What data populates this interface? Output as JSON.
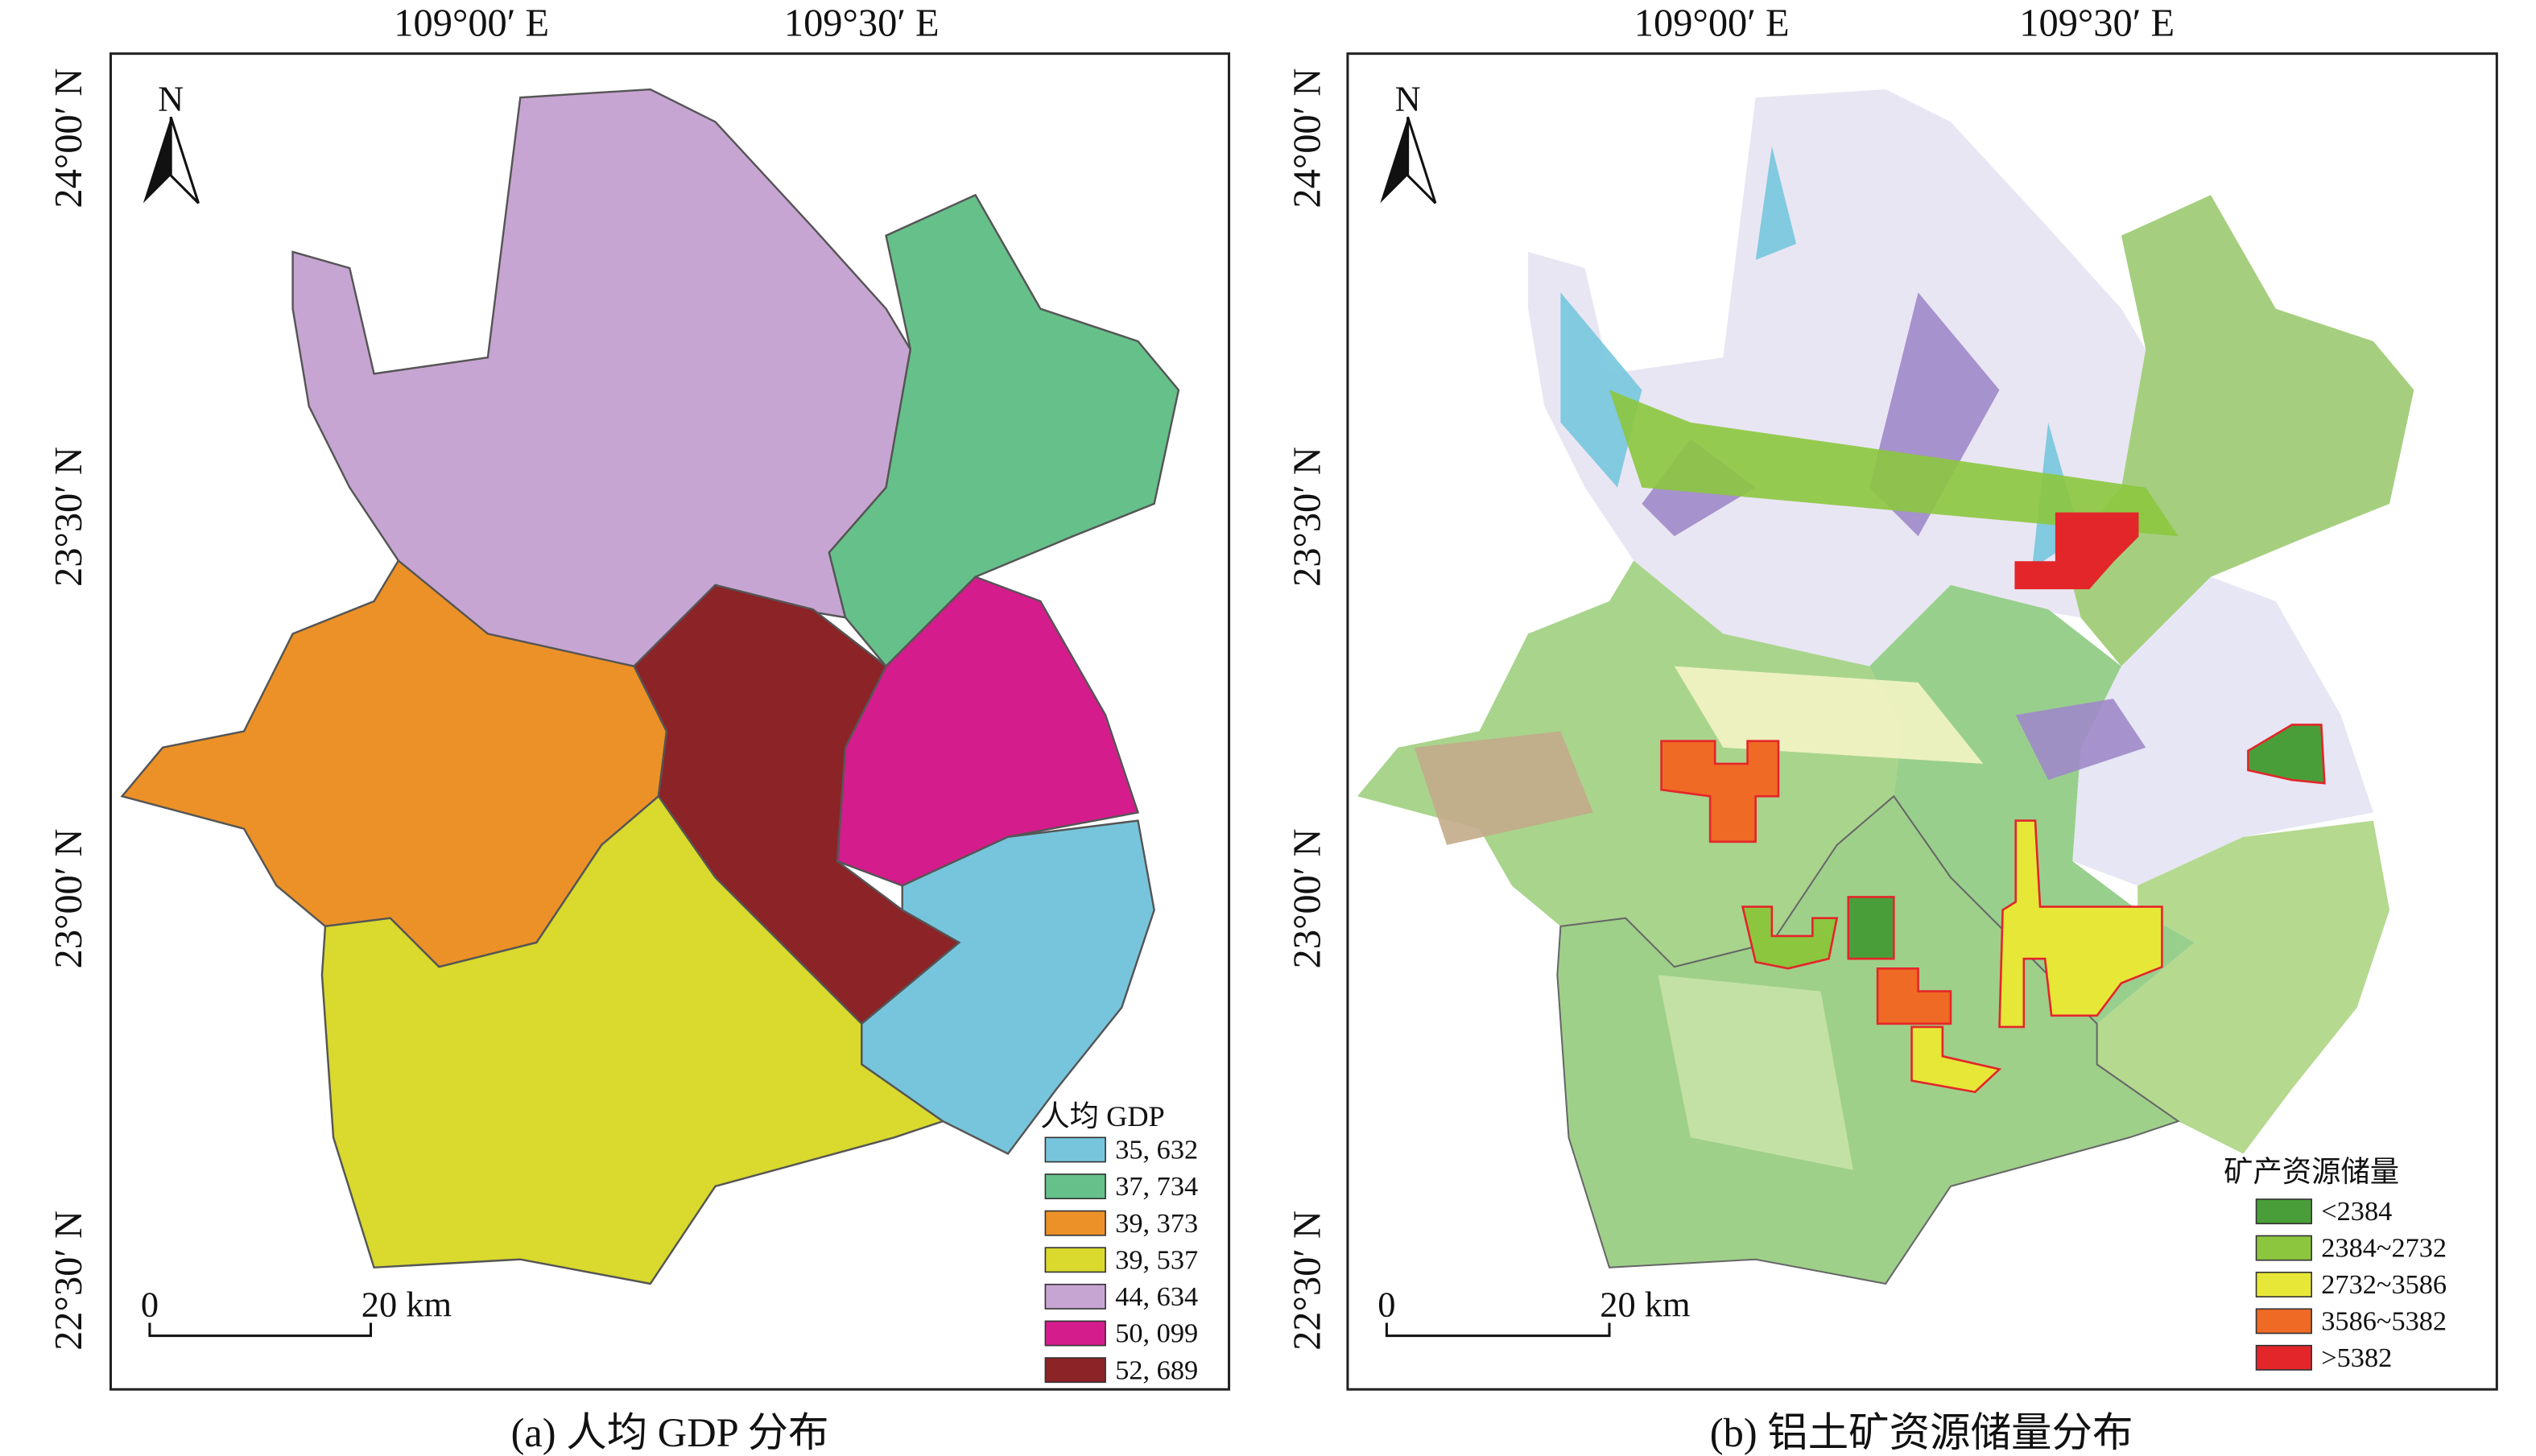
{
  "panels": [
    {
      "caption": "(a) 人均 GDP 分布",
      "x_labels": [
        "109°00′ E",
        "109°30′ E"
      ],
      "y_labels": [
        "24°00′ N",
        "23°30′ N",
        "23°00′ N",
        "22°30′ N"
      ],
      "north": "N",
      "scale": [
        "0",
        "20 km"
      ],
      "legend": {
        "title": "人均 GDP",
        "items": [
          {
            "label": "35, 632",
            "color": "#77c5dc"
          },
          {
            "label": "37, 734",
            "color": "#66c08a"
          },
          {
            "label": "39, 373",
            "color": "#ec9127"
          },
          {
            "label": "39, 537",
            "color": "#d9d92e"
          },
          {
            "label": "44, 634",
            "color": "#c7a5d2"
          },
          {
            "label": "50, 099",
            "color": "#d51c8c"
          },
          {
            "label": "52, 689",
            "color": "#8c2327"
          }
        ]
      }
    },
    {
      "caption": "(b) 铝土矿资源储量分布",
      "x_labels": [
        "109°00′ E",
        "109°30′ E"
      ],
      "y_labels": [
        "24°00′ N",
        "23°30′ N",
        "23°00′ N",
        "22°30′ N"
      ],
      "north": "N",
      "scale": [
        "0",
        "20 km"
      ],
      "legend": {
        "title": "矿产资源储量",
        "items": [
          {
            "label": "<2384",
            "color": "#4a9e3a"
          },
          {
            "label": "2384~2732",
            "color": "#8cc63f"
          },
          {
            "label": "2732~3586",
            "color": "#e7e737"
          },
          {
            "label": "3586~5382",
            "color": "#ef6a25"
          },
          {
            "label": ">5382",
            "color": "#e3262a"
          }
        ]
      }
    }
  ]
}
